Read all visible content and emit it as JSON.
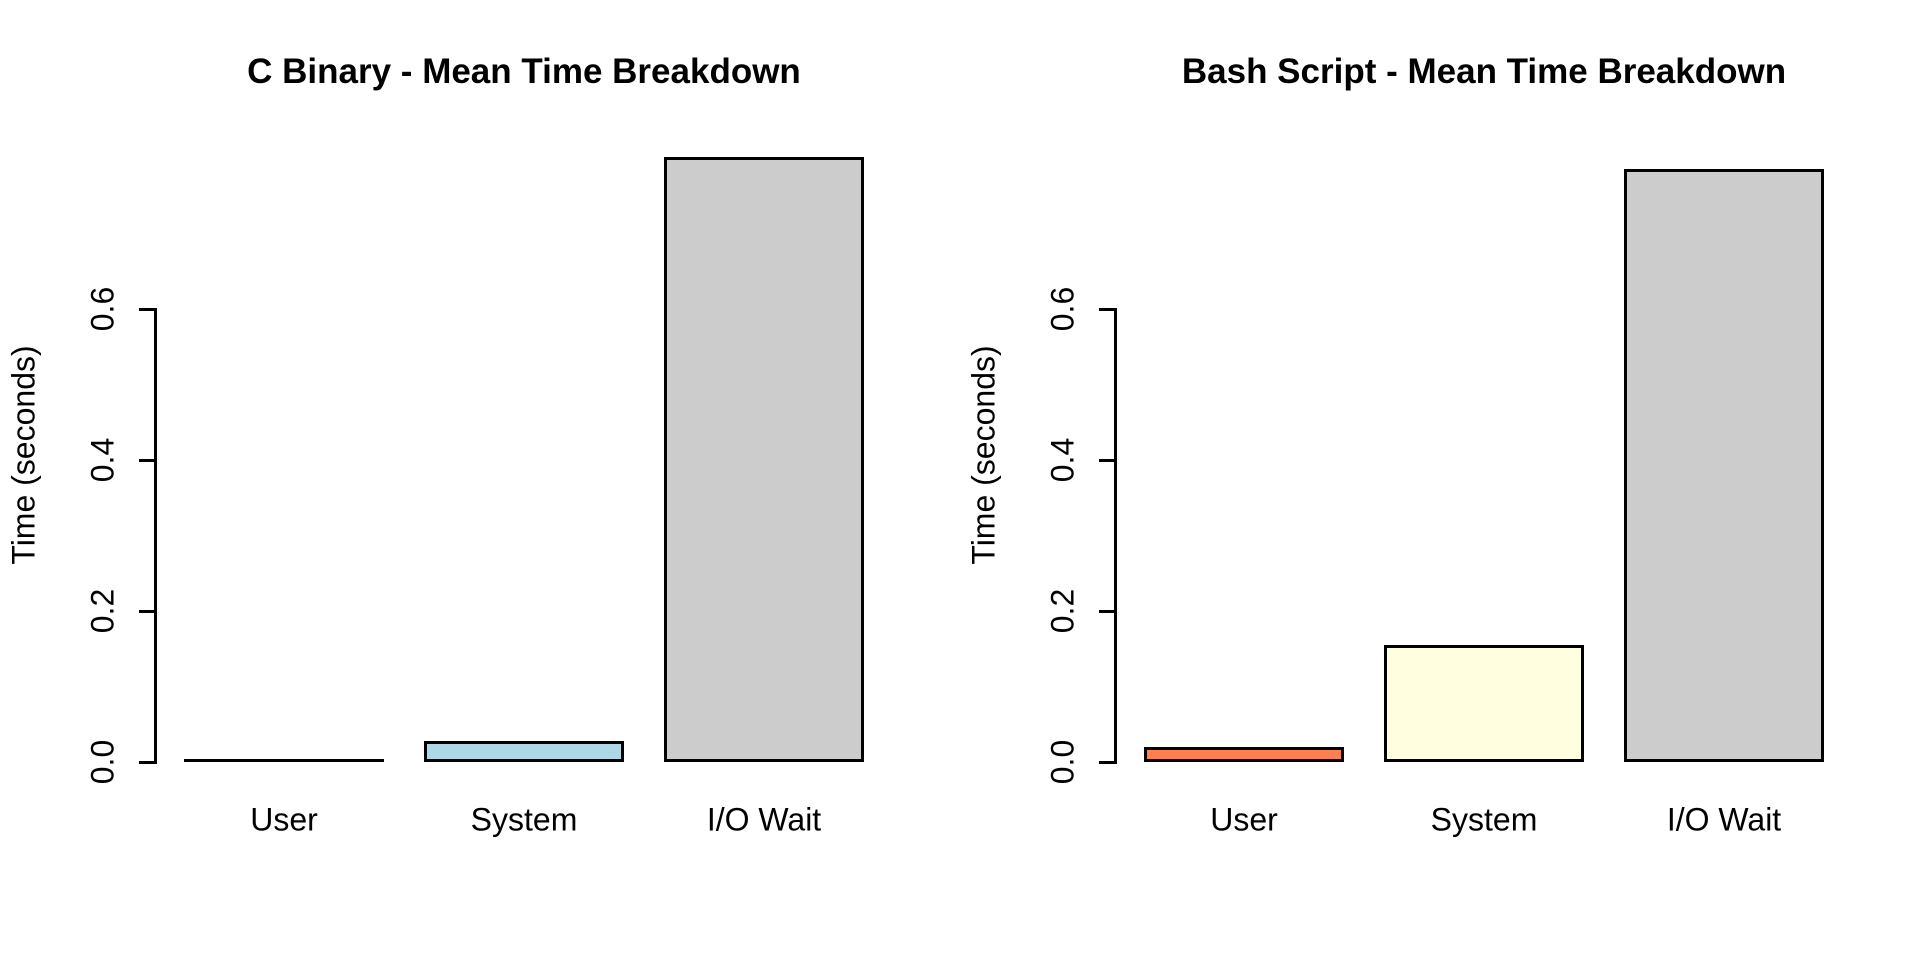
{
  "chart_data": [
    {
      "type": "bar",
      "title": "C Binary - Mean Time Breakdown",
      "ylabel": "Time (seconds)",
      "categories": [
        "User",
        "System",
        "I/O Wait"
      ],
      "values": [
        0.001,
        0.028,
        0.801
      ],
      "bar_colors": [
        "#FF7F50",
        "#ADD8E6",
        "#CCCCCC"
      ],
      "yticks": [
        0.0,
        0.2,
        0.4,
        0.6
      ],
      "ytick_labels": [
        "0.0",
        "0.2",
        "0.4",
        "0.6"
      ],
      "ylim": [
        0,
        0.84
      ],
      "grid": false,
      "legend_position": "none"
    },
    {
      "type": "bar",
      "title": "Bash Script - Mean Time Breakdown",
      "ylabel": "Time (seconds)",
      "categories": [
        "User",
        "System",
        "I/O Wait"
      ],
      "values": [
        0.02,
        0.155,
        0.785
      ],
      "bar_colors": [
        "#FF7F50",
        "#FFFFE0",
        "#CCCCCC"
      ],
      "yticks": [
        0.0,
        0.2,
        0.4,
        0.6
      ],
      "ytick_labels": [
        "0.0",
        "0.2",
        "0.4",
        "0.6"
      ],
      "ylim": [
        0,
        0.84
      ],
      "grid": false,
      "legend_position": "none"
    }
  ],
  "colors": {
    "background": "#FFFFFF",
    "text": "#000000",
    "axis": "#000000",
    "bar_border": "#000000"
  }
}
